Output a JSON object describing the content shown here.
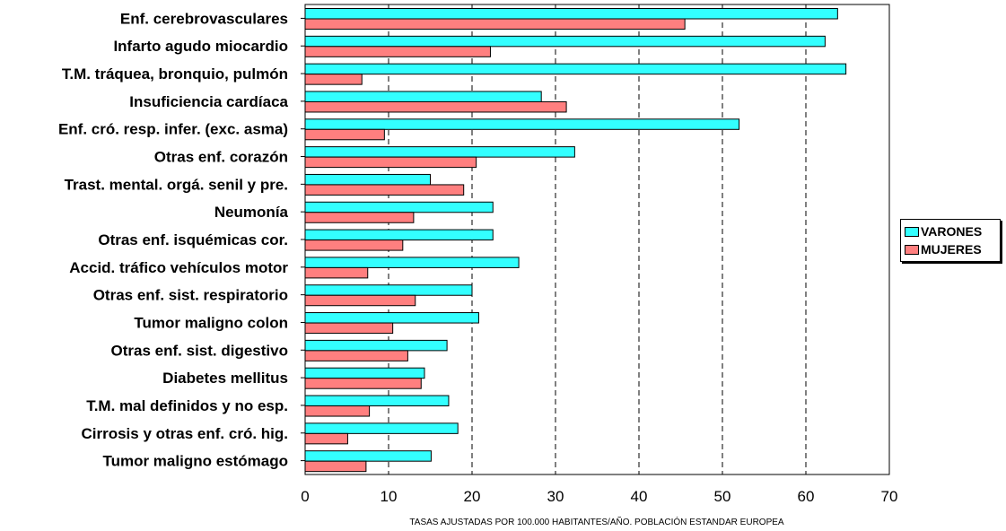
{
  "chart_data": {
    "type": "bar",
    "orientation": "horizontal",
    "categories": [
      "Enf. cerebrovasculares",
      "Infarto agudo miocardio",
      "T.M. tráquea, bronquio,  pulmón",
      "Insuficiencia cardíaca",
      "Enf. cró. resp. infer. (exc. asma)",
      "Otras enf. corazón",
      "Trast. mental. orgá. senil y pre.",
      "Neumonía",
      "Otras enf. isquémicas cor.",
      "Accid. tráfico vehículos motor",
      "Otras enf. sist. respiratorio",
      "Tumor maligno colon",
      "Otras enf. sist. digestivo",
      "Diabetes mellitus",
      "T.M. mal definidos y no esp.",
      "Cirrosis y otras enf. cró. hig.",
      "Tumor maligno estómago"
    ],
    "series": [
      {
        "name": "VARONES",
        "color": "#33ffff",
        "values": [
          63.8,
          62.3,
          64.8,
          28.3,
          52.0,
          32.3,
          15.0,
          22.5,
          22.5,
          25.6,
          20.0,
          20.8,
          17.0,
          14.3,
          17.2,
          18.3,
          15.1
        ]
      },
      {
        "name": "MUJERES",
        "color": "#ff7f7f",
        "values": [
          45.5,
          22.2,
          6.8,
          31.3,
          9.5,
          20.5,
          19.0,
          13.0,
          11.7,
          7.5,
          13.2,
          10.5,
          12.3,
          13.9,
          7.7,
          5.1,
          7.3
        ]
      }
    ],
    "xlim": [
      0,
      70
    ],
    "xticks": [
      "0",
      "10",
      "20",
      "30",
      "40",
      "50",
      "60",
      "70"
    ],
    "xlabel": "TASAS AJUSTADAS POR 100.000 HABITANTES/AÑO. POBLACIÓN ESTANDAR EUROPEA",
    "grid": "vertical dashed",
    "legend_position": "right"
  }
}
